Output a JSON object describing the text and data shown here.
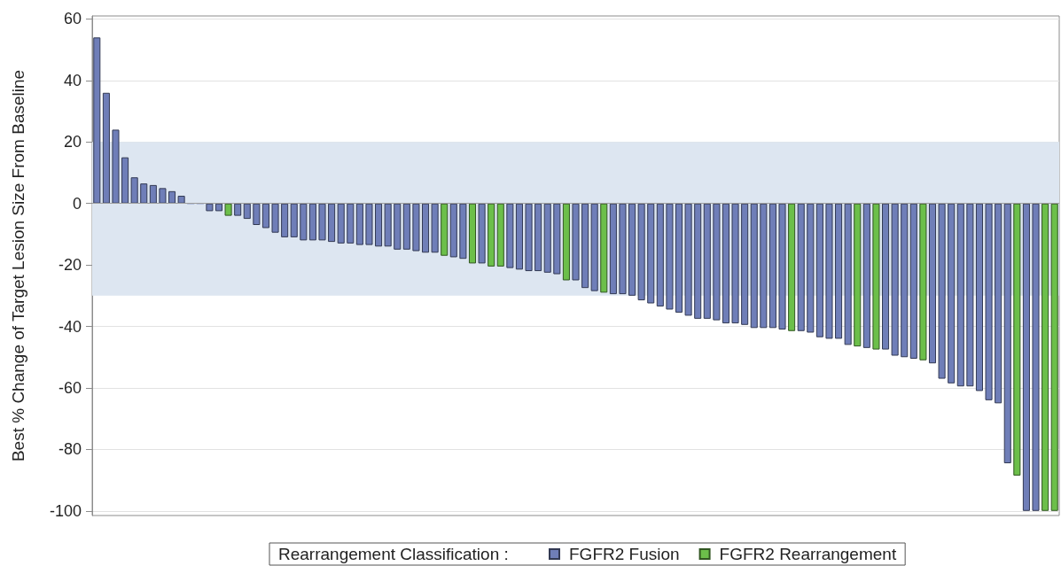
{
  "chart_data": {
    "type": "bar",
    "ylabel": "Best % Change of Target Lesion Size From Baseline",
    "legend_title": "Rearrangement Classification :",
    "categories": [
      null,
      null,
      null,
      null,
      null,
      null,
      null,
      null,
      null,
      null,
      null,
      null,
      null,
      null,
      null,
      null,
      null,
      null,
      null,
      null,
      null,
      null,
      null,
      null,
      null,
      null,
      null,
      null,
      null,
      null,
      null,
      null,
      null,
      null,
      null,
      null,
      null,
      null,
      null,
      null,
      null,
      null,
      null,
      null,
      null,
      null,
      null,
      null,
      null,
      null,
      null,
      null,
      null,
      null,
      null,
      null,
      null,
      null,
      null,
      null,
      null,
      null,
      null,
      null,
      null,
      null,
      null,
      null,
      null,
      null,
      null,
      null,
      null,
      null,
      null,
      null,
      null,
      null,
      null,
      null,
      null,
      null,
      null,
      null,
      null,
      null,
      null,
      null,
      null,
      null,
      null,
      null,
      null,
      null,
      null,
      null,
      null,
      null,
      null,
      null,
      null,
      null,
      null
    ],
    "series": [
      {
        "name": "FGFR2 Fusion",
        "color": "#6f7eb8",
        "values": [
          54,
          36,
          24,
          15,
          8.5,
          6.5,
          6,
          5,
          4,
          2.5,
          0,
          0,
          -2.5,
          -2.5,
          null,
          -4,
          -5,
          -7,
          -8,
          -9.5,
          -11,
          -11,
          -12,
          -12,
          -12,
          -12.5,
          -13,
          -13,
          -13.5,
          -13.5,
          -14,
          -14,
          -15,
          -15,
          -15.5,
          -16,
          -16,
          null,
          -17.5,
          -18,
          null,
          -19.5,
          null,
          null,
          -21,
          -21.5,
          -22,
          -22,
          -22.5,
          -23,
          null,
          -25,
          -27.5,
          -28.5,
          null,
          -29.5,
          -29.5,
          -30,
          -31.5,
          -32.5,
          -33.5,
          -34.5,
          -35.5,
          -36.5,
          -37.5,
          -37.5,
          -38,
          -39,
          -39,
          -39.5,
          -40.5,
          -40.5,
          -40.5,
          -41,
          null,
          -41.5,
          -42,
          -43.5,
          -44,
          -44,
          -46,
          null,
          -47,
          null,
          -47.5,
          -49.5,
          -50,
          -50.5,
          null,
          -52,
          -57,
          -58.5,
          -59.5,
          -59.5,
          -61,
          -64,
          -65,
          -84.5,
          null,
          -100,
          -100,
          null,
          null
        ]
      },
      {
        "name": "FGFR2 Rearrangement",
        "color": "#6cbf4a",
        "values": [
          null,
          null,
          null,
          null,
          null,
          null,
          null,
          null,
          null,
          null,
          null,
          null,
          null,
          null,
          -4,
          null,
          null,
          null,
          null,
          null,
          null,
          null,
          null,
          null,
          null,
          null,
          null,
          null,
          null,
          null,
          null,
          null,
          null,
          null,
          null,
          null,
          null,
          -17,
          null,
          null,
          -19.5,
          null,
          -20.5,
          -20.5,
          null,
          null,
          null,
          null,
          null,
          null,
          -25,
          null,
          null,
          null,
          -29,
          null,
          null,
          null,
          null,
          null,
          null,
          null,
          null,
          null,
          null,
          null,
          null,
          null,
          null,
          null,
          null,
          null,
          null,
          null,
          -41.5,
          null,
          null,
          null,
          null,
          null,
          null,
          -46.5,
          null,
          -47.5,
          null,
          null,
          null,
          null,
          -51,
          null,
          null,
          null,
          null,
          null,
          null,
          null,
          null,
          null,
          -88.5,
          null,
          null,
          -100,
          -100
        ]
      }
    ],
    "ylim": [
      -101.5,
      61
    ],
    "yticks": [
      -100,
      -80,
      -60,
      -40,
      -20,
      0,
      20,
      40,
      60
    ],
    "grid": "y",
    "legend": "bottom",
    "tick_labels": "y",
    "bands": [
      {
        "axis": "y",
        "from": -30,
        "to": 20,
        "color": "#dde6f1"
      }
    ],
    "ref_lines": [
      {
        "axis": "y",
        "value": 0,
        "color": "#9e9e9e"
      }
    ]
  }
}
